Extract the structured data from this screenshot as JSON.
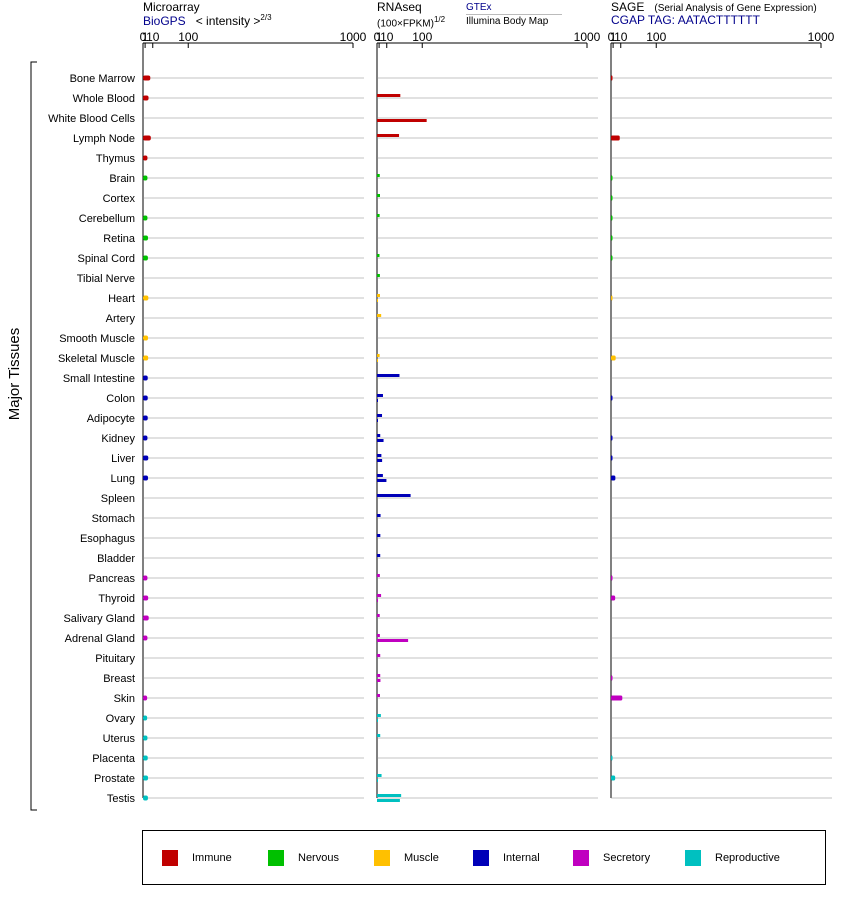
{
  "headers": {
    "microarray": "Microarray",
    "biogps": "BioGPS",
    "intensity": "< intensity >",
    "intensity_exp": "2/3",
    "rnaseq": "RNAseq",
    "fpkm": "(100×FPKM)",
    "fpkm_exp": "1/2",
    "gtex": "GTEx",
    "illumina": "Illumina Body Map",
    "sage": "SAGE",
    "sage_desc": "(Serial Analysis of Gene Expression)",
    "cgap": "CGAP TAG: AATACTTTTTT"
  },
  "axis_ticks": [
    "0",
    "1",
    "10",
    "100",
    "1000"
  ],
  "y_group_label": "Major Tissues",
  "colors": {
    "Immune": "#c00000",
    "Nervous": "#00c000",
    "Muscle": "#ffc000",
    "Internal": "#0000b8",
    "Secretory": "#c000c0",
    "Reproductive": "#00c0c0"
  },
  "legend": [
    "Immune",
    "Nervous",
    "Muscle",
    "Internal",
    "Secretory",
    "Reproductive"
  ],
  "chart_data": {
    "type": "bar",
    "scale": "power",
    "xlim": [
      0,
      1000
    ],
    "categories": [
      "Bone Marrow",
      "Whole Blood",
      "White Blood Cells",
      "Lymph Node",
      "Thymus",
      "Brain",
      "Cortex",
      "Cerebellum",
      "Retina",
      "Spinal Cord",
      "Tibial Nerve",
      "Heart",
      "Artery",
      "Smooth Muscle",
      "Skeletal Muscle",
      "Small Intestine",
      "Colon",
      "Adipocyte",
      "Kidney",
      "Liver",
      "Lung",
      "Spleen",
      "Stomach",
      "Esophagus",
      "Bladder",
      "Pancreas",
      "Thyroid",
      "Salivary Gland",
      "Adrenal Gland",
      "Pituitary",
      "Breast",
      "Skin",
      "Ovary",
      "Uterus",
      "Placenta",
      "Prostate",
      "Testis"
    ],
    "groups": [
      "Immune",
      "Immune",
      "Immune",
      "Immune",
      "Immune",
      "Nervous",
      "Nervous",
      "Nervous",
      "Nervous",
      "Nervous",
      "Nervous",
      "Muscle",
      "Muscle",
      "Muscle",
      "Muscle",
      "Internal",
      "Internal",
      "Internal",
      "Internal",
      "Internal",
      "Internal",
      "Internal",
      "Internal",
      "Internal",
      "Internal",
      "Secretory",
      "Secretory",
      "Secretory",
      "Secretory",
      "Secretory",
      "Secretory",
      "Secretory",
      "Reproductive",
      "Reproductive",
      "Reproductive",
      "Reproductive",
      "Reproductive"
    ],
    "series": [
      {
        "name": "Microarray",
        "values": [
          6.5,
          4.3,
          null,
          7.2,
          3.1,
          3.1,
          null,
          3.1,
          3.7,
          3.6,
          null,
          4.1,
          null,
          3.7,
          3.9,
          3.4,
          3.4,
          3.4,
          3.1,
          4.0,
          3.7,
          null,
          null,
          null,
          null,
          3.1,
          3.9,
          4.5,
          3.1,
          null,
          null,
          2.8,
          2.8,
          3.1,
          3.4,
          3.7,
          3.6
        ]
      },
      {
        "name": "GTEx",
        "values": [
          null,
          37,
          null,
          34,
          null,
          1.5,
          1.7,
          1.4,
          null,
          1.3,
          1.6,
          1.7,
          2.8,
          null,
          1.4,
          35,
          4.8,
          3.7,
          1.9,
          3.0,
          4.7,
          64,
          2.2,
          2.0,
          1.9,
          1.6,
          2.7,
          1.5,
          1.6,
          1.9,
          1.9,
          1.7,
          2.5,
          1.9,
          null,
          3.2,
          39
        ]
      },
      {
        "name": "Illumina Body Map",
        "values": [
          null,
          null,
          115,
          null,
          null,
          null,
          null,
          null,
          null,
          null,
          null,
          0.01,
          null,
          null,
          0.01,
          null,
          0.02,
          0.02,
          5.5,
          3.8,
          9.5,
          null,
          null,
          null,
          null,
          null,
          0.01,
          null,
          57,
          null,
          2.1,
          null,
          0.02,
          null,
          null,
          0.01,
          36
        ]
      },
      {
        "name": "SAGE",
        "values": [
          0.05,
          null,
          null,
          8.5,
          null,
          0.05,
          0.05,
          0.05,
          0.05,
          0.05,
          null,
          0.01,
          null,
          null,
          3.3,
          null,
          0.05,
          null,
          0.06,
          0.06,
          3.0,
          null,
          null,
          null,
          null,
          0.07,
          2.8,
          null,
          null,
          null,
          0.07,
          12.5,
          null,
          null,
          0.05,
          2.8,
          null
        ]
      }
    ],
    "legend_position": "bottom"
  }
}
